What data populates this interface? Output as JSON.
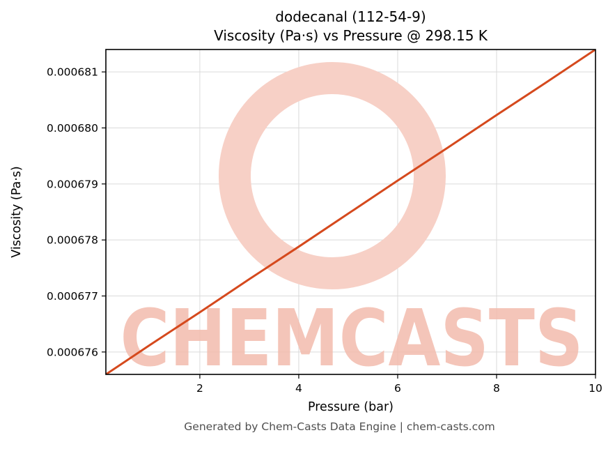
{
  "chart_data": {
    "type": "line",
    "title_line1": "dodecanal (112-54-9)",
    "title_line2": "Viscosity (Pa·s) vs Pressure @ 298.15 K",
    "xlabel": "Pressure (bar)",
    "ylabel": "Viscosity (Pa·s)",
    "xlim": [
      0.1,
      10
    ],
    "ylim": [
      0.0006756,
      0.0006814
    ],
    "grid": true,
    "legend": "none",
    "xticks": {
      "values": [
        2,
        4,
        6,
        8,
        10
      ],
      "labels": [
        "2",
        "4",
        "6",
        "8",
        "10"
      ]
    },
    "yticks": {
      "values": [
        0.000676,
        0.000677,
        0.000678,
        0.000679,
        0.00068,
        0.000681
      ],
      "labels": [
        "0.000676",
        "0.000677",
        "0.000678",
        "0.000679",
        "0.000680",
        "0.000681"
      ]
    },
    "line_color": "#d5491d",
    "line_width": 3,
    "series": [
      {
        "name": "viscosity-vs-pressure",
        "x": [
          0.1,
          1,
          2,
          3,
          4,
          5,
          6,
          7,
          8,
          9,
          10
        ],
        "y": [
          0.0006756,
          0.00067613,
          0.00067671,
          0.0006773,
          0.00067788,
          0.00067847,
          0.00067906,
          0.00067964,
          0.00068023,
          0.00068081,
          0.0006814
        ]
      }
    ],
    "watermark": {
      "text": "CHEMCASTS",
      "ring_color": "#f7d0c6",
      "text_color": "#f3bcad"
    },
    "footer": "Generated by Chem-Casts Data Engine | chem-casts.com"
  }
}
